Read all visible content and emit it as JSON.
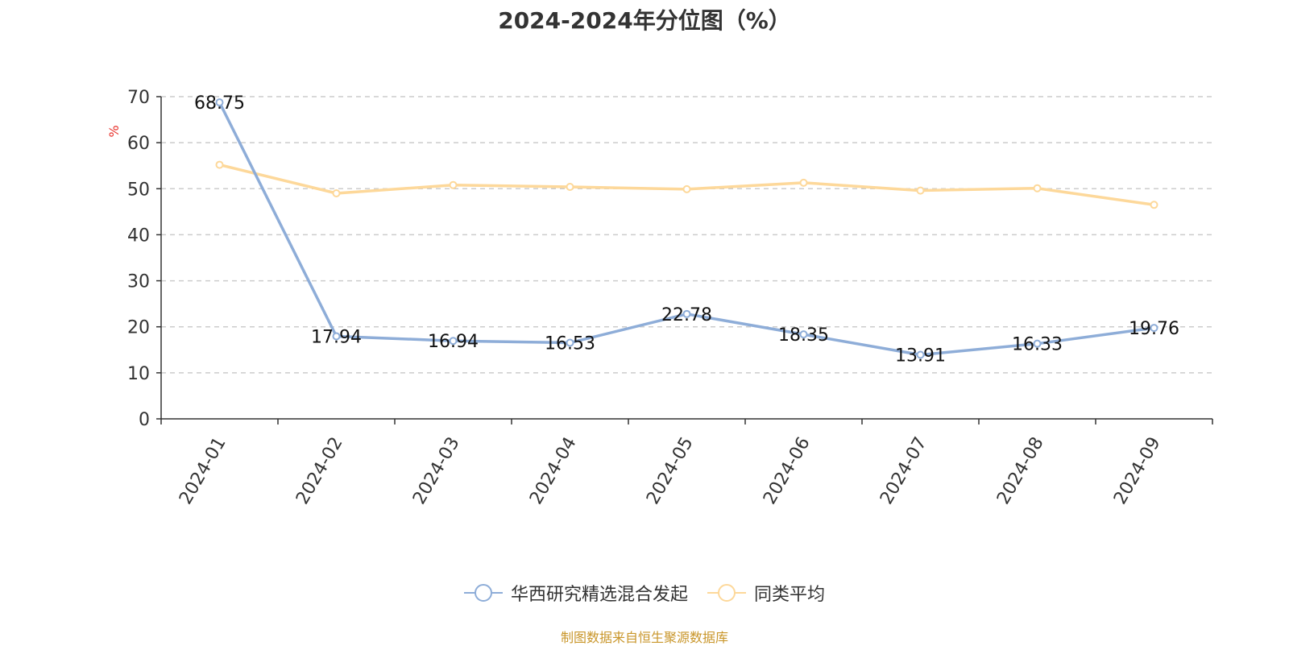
{
  "title": "2024-2024年分位图（%）",
  "y_unit": "%",
  "source": "制图数据来自恒生聚源数据库",
  "colors": {
    "series1": "#8eadd8",
    "series2": "#fdd89a",
    "grid": "#cccccc",
    "axis": "#333333",
    "unit": "#e8322c"
  },
  "chart_data": {
    "type": "line",
    "categories": [
      "2024-01",
      "2024-02",
      "2024-03",
      "2024-04",
      "2024-05",
      "2024-06",
      "2024-07",
      "2024-08",
      "2024-09"
    ],
    "series": [
      {
        "name": "华西研究精选混合发起",
        "values": [
          68.75,
          17.94,
          16.94,
          16.53,
          22.78,
          18.35,
          13.91,
          16.33,
          19.76
        ],
        "labels": [
          "68.75",
          "17.94",
          "16.94",
          "16.53",
          "22.78",
          "18.35",
          "13.91",
          "16.33",
          "19.76"
        ]
      },
      {
        "name": "同类平均",
        "values": [
          55.2,
          49.0,
          50.8,
          50.4,
          49.9,
          51.3,
          49.6,
          50.1,
          46.5
        ]
      }
    ],
    "ylim": [
      0,
      70
    ],
    "yticks": [
      0,
      10,
      20,
      30,
      40,
      50,
      60,
      70
    ],
    "grid": true,
    "legend": "bottom"
  }
}
